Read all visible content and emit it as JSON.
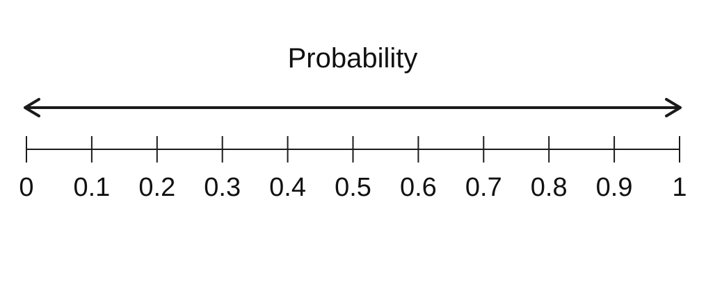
{
  "diagram": {
    "title": "Probability",
    "scale": {
      "min": 0,
      "max": 1,
      "step": 0.1,
      "tick_labels": [
        "0",
        "0.1",
        "0.2",
        "0.3",
        "0.4",
        "0.5",
        "0.6",
        "0.7",
        "0.8",
        "0.9",
        "1"
      ]
    },
    "arrow": "double-headed-arrow"
  }
}
